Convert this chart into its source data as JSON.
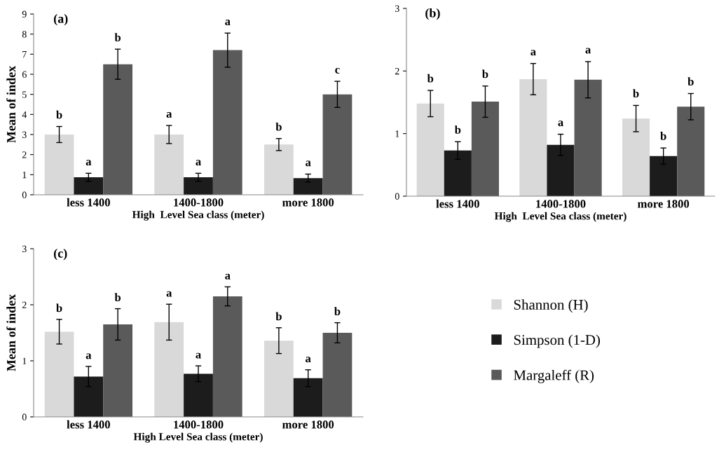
{
  "chart_data": [
    {
      "type": "bar",
      "title": "(a)",
      "xlabel": "High  Level Sea class (meter)",
      "ylabel": "Mean of index",
      "categories": [
        "less 1400",
        "1400-1800",
        "more 1800"
      ],
      "ylim": [
        0,
        9
      ],
      "yticks": [
        0,
        1,
        2,
        3,
        4,
        5,
        6,
        7,
        8,
        9
      ],
      "grid": false,
      "legend": false,
      "series": [
        {
          "color": "#d9d9d9",
          "values": [
            3.0,
            3.0,
            2.5
          ],
          "errors": [
            0.4,
            0.45,
            0.3
          ],
          "value_labels": [
            "b",
            "a",
            "b"
          ]
        },
        {
          "color": "#1c1c1c",
          "values": [
            0.87,
            0.87,
            0.83
          ],
          "errors": [
            0.2,
            0.2,
            0.2
          ],
          "value_labels": [
            "a",
            "a",
            "a"
          ]
        },
        {
          "color": "#5a5a5a",
          "values": [
            6.5,
            7.2,
            5.0
          ],
          "errors": [
            0.75,
            0.85,
            0.65
          ],
          "value_labels": [
            "b",
            "a",
            "c"
          ]
        }
      ]
    },
    {
      "type": "bar",
      "title": "(b)",
      "xlabel": "High  Level Sea class (meter)",
      "categories": [
        "less 1400",
        "1400-1800",
        "more 1800"
      ],
      "ylim": [
        0,
        3
      ],
      "yticks": [
        0,
        1,
        2,
        3
      ],
      "grid": false,
      "legend": false,
      "series": [
        {
          "color": "#d9d9d9",
          "values": [
            1.48,
            1.87,
            1.24
          ],
          "errors": [
            0.21,
            0.25,
            0.21
          ],
          "value_labels": [
            "b",
            "a",
            "b"
          ]
        },
        {
          "color": "#1c1c1c",
          "values": [
            0.73,
            0.82,
            0.64
          ],
          "errors": [
            0.14,
            0.17,
            0.13
          ],
          "value_labels": [
            "b",
            "a",
            "b"
          ]
        },
        {
          "color": "#5a5a5a",
          "values": [
            1.51,
            1.86,
            1.43
          ],
          "errors": [
            0.25,
            0.29,
            0.21
          ],
          "value_labels": [
            "b",
            "a",
            "b"
          ]
        }
      ]
    },
    {
      "type": "bar",
      "title": "(c)",
      "xlabel": "High Level Sea class (meter)",
      "ylabel": "Mean of index",
      "categories": [
        "less 1400",
        "1400-1800",
        "more 1800"
      ],
      "ylim": [
        0,
        3
      ],
      "yticks": [
        0,
        1,
        2,
        3
      ],
      "grid": false,
      "legend": "right",
      "series": [
        {
          "name": "Shannon (H)",
          "color": "#d9d9d9",
          "values": [
            1.52,
            1.69,
            1.36
          ],
          "errors": [
            0.22,
            0.32,
            0.23
          ],
          "value_labels": [
            "b",
            "a",
            "b"
          ]
        },
        {
          "name": "Simpson (1-D)",
          "color": "#1c1c1c",
          "values": [
            0.72,
            0.77,
            0.69
          ],
          "errors": [
            0.18,
            0.14,
            0.15
          ],
          "value_labels": [
            "a",
            "a",
            "a"
          ]
        },
        {
          "name": "Margaleff (R)",
          "color": "#5a5a5a",
          "values": [
            1.65,
            2.15,
            1.5
          ],
          "errors": [
            0.28,
            0.17,
            0.18
          ],
          "value_labels": [
            "b",
            "a",
            "b"
          ]
        }
      ]
    }
  ]
}
